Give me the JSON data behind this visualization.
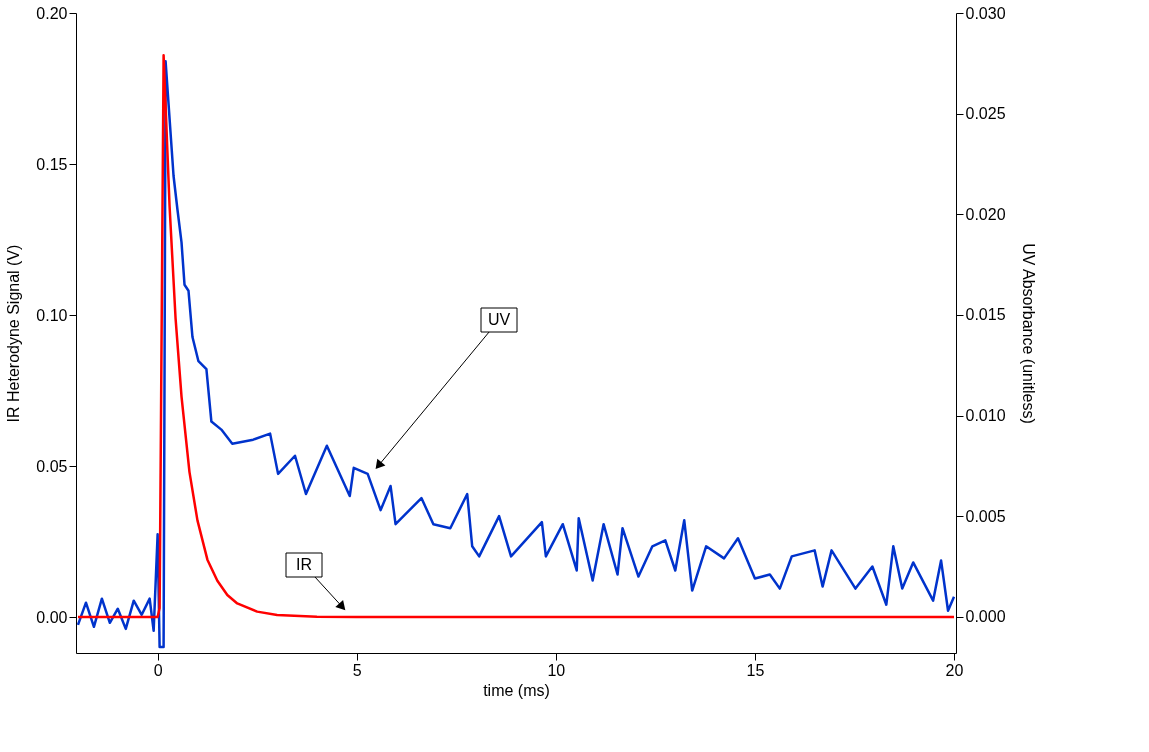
{
  "chart_data": {
    "type": "line",
    "xlabel": "time (ms)",
    "ylabel": "IR  Heterodyne Signal (V)",
    "y2label": "UV  Absorbance (unitless)",
    "xlim": [
      -2.05,
      20.05
    ],
    "xticks": [
      0,
      5,
      10,
      15,
      20
    ],
    "ylim": [
      -0.0119,
      0.2
    ],
    "yticks": [
      {
        "value": 0,
        "label": "0.00"
      },
      {
        "value": 0.05,
        "label": "0.05"
      },
      {
        "value": 0.1,
        "label": "0.10"
      },
      {
        "value": 0.15,
        "label": "0.15"
      },
      {
        "value": 0.2,
        "label": "0.20"
      }
    ],
    "y2lim": [
      -0.0018,
      0.03
    ],
    "y2ticks": [
      {
        "value": 0,
        "label": "0.000"
      },
      {
        "value": 0.005,
        "label": "0.005"
      },
      {
        "value": 0.01,
        "label": "0.010"
      },
      {
        "value": 0.015,
        "label": "0.015"
      },
      {
        "value": 0.02,
        "label": "0.020"
      },
      {
        "value": 0.025,
        "label": "0.025"
      },
      {
        "value": 0.03,
        "label": "0.030"
      }
    ],
    "grid": false,
    "marker": "none",
    "line_style": "solid",
    "series": [
      {
        "color": "#ff0000",
        "x": [
          -2.0,
          -1.0,
          -0.5,
          0.0,
          0.05,
          0.15,
          0.3,
          0.45,
          0.6,
          0.8,
          1.0,
          1.25,
          1.5,
          1.75,
          2.0,
          2.5,
          3.0,
          4.0,
          5.0,
          10.0,
          15.0,
          20.0
        ],
        "values": [
          0,
          0,
          0,
          0,
          0.003,
          0.186,
          0.136,
          0.099,
          0.073,
          0.048,
          0.032,
          0.019,
          0.012,
          0.0073,
          0.0045,
          0.0018,
          0.0007,
          0.0001,
          0,
          0,
          0,
          0
        ]
      },
      {
        "color": "#0033cc",
        "axis": "y2",
        "x": [
          -2.0,
          -1.8,
          -1.6,
          -1.4,
          -1.2,
          -1.0,
          -0.8,
          -0.6,
          -0.4,
          -0.2,
          -0.1,
          0.0,
          0.05,
          0.15,
          0.2,
          0.4,
          0.5,
          0.6,
          0.675,
          0.775,
          0.875,
          1.025,
          1.225,
          1.35,
          1.6,
          1.875,
          2.4,
          2.825,
          3.025,
          3.45,
          3.725,
          4.25,
          4.825,
          4.925,
          5.275,
          5.6,
          5.85,
          5.975,
          6.625,
          6.925,
          7.35,
          7.775,
          7.9,
          8.075,
          8.575,
          8.875,
          9.65,
          9.75,
          10.175,
          10.525,
          10.575,
          10.925,
          11.2,
          11.55,
          11.675,
          12.075,
          12.425,
          12.75,
          13.0,
          13.225,
          13.425,
          13.775,
          14.225,
          14.575,
          15.0,
          15.375,
          15.625,
          15.925,
          16.5,
          16.7,
          16.925,
          17.525,
          17.95,
          18.3,
          18.475,
          18.7,
          18.975,
          19.475,
          19.675,
          19.85,
          20.0
        ],
        "values": [
          -0.0004,
          0.0007,
          -0.0005,
          0.0009,
          -0.0003,
          0.0004,
          -0.0006,
          0.0008,
          0.0001,
          0.0009,
          -0.0007,
          0.0041,
          -0.0015,
          -0.0015,
          0.0276,
          0.0219,
          0.0202,
          0.0186,
          0.0165,
          0.0162,
          0.0139,
          0.0127,
          0.0123,
          0.0097,
          0.0093,
          0.0086,
          0.0088,
          0.0091,
          0.0071,
          0.008,
          0.0061,
          0.0085,
          0.006,
          0.0074,
          0.0071,
          0.0053,
          0.0065,
          0.0046,
          0.0059,
          0.0046,
          0.0044,
          0.0061,
          0.0035,
          0.003,
          0.005,
          0.003,
          0.0047,
          0.003,
          0.0046,
          0.0023,
          0.0049,
          0.0018,
          0.0046,
          0.0021,
          0.0044,
          0.002,
          0.0035,
          0.0038,
          0.0023,
          0.0048,
          0.0013,
          0.0035,
          0.0029,
          0.0039,
          0.0019,
          0.0021,
          0.0014,
          0.003,
          0.0033,
          0.0015,
          0.0033,
          0.0014,
          0.0025,
          0.0006,
          0.0035,
          0.0014,
          0.0027,
          0.0008,
          0.0028,
          0.0003,
          0.001
        ]
      }
    ],
    "annotations": [
      "UV",
      "IR"
    ]
  }
}
